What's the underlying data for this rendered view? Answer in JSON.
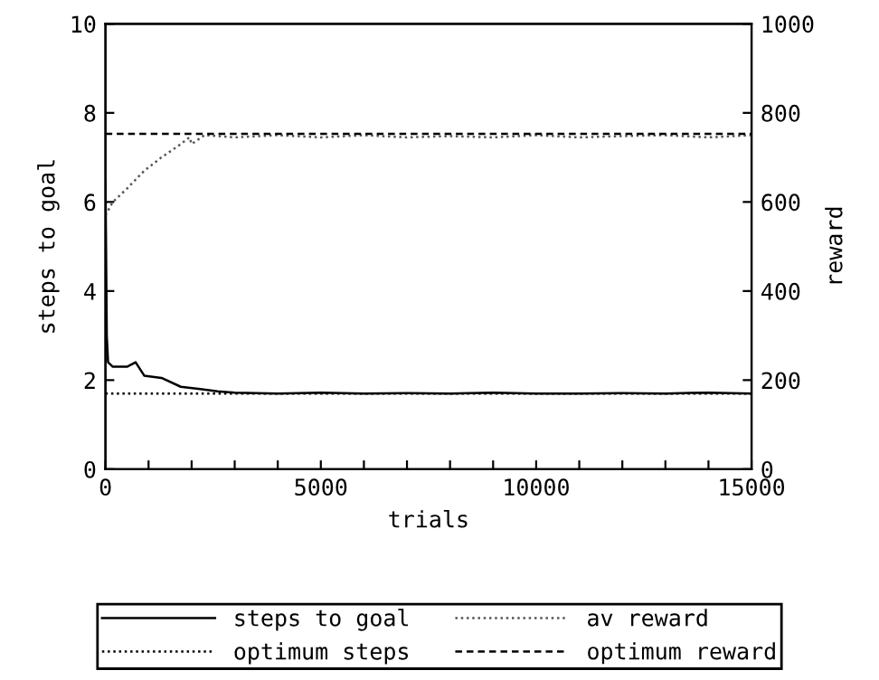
{
  "chart_data": {
    "type": "line",
    "xlabel": "trials",
    "ylabel": "steps to goal",
    "y2label": "reward",
    "xlim": [
      0,
      15000
    ],
    "ylim": [
      0,
      10
    ],
    "y2lim": [
      0,
      1000
    ],
    "xticks": [
      0,
      {
        "value": 1000,
        "label": null
      },
      {
        "value": 2000,
        "label": null
      },
      {
        "value": 3000,
        "label": null
      },
      {
        "value": 4000,
        "label": null
      },
      5000,
      {
        "value": 6000,
        "label": null
      },
      {
        "value": 7000,
        "label": null
      },
      {
        "value": 8000,
        "label": null
      },
      {
        "value": 9000,
        "label": null
      },
      10000,
      {
        "value": 11000,
        "label": null
      },
      {
        "value": 12000,
        "label": null
      },
      {
        "value": 13000,
        "label": null
      },
      {
        "value": 14000,
        "label": null
      },
      15000
    ],
    "yticks": [
      0,
      2,
      4,
      6,
      8,
      10
    ],
    "y2ticks": [
      0,
      200,
      400,
      600,
      800,
      1000
    ],
    "legend": "bottom",
    "grid": false,
    "series": [
      {
        "name": "steps to goal",
        "color": "#000000",
        "line_style": "solid",
        "x": [
          0,
          30,
          60,
          170,
          500,
          700,
          900,
          1300,
          1750,
          2200,
          2600,
          3000,
          4000,
          5000,
          6000,
          7000,
          8000,
          9000,
          10000,
          11000,
          12000,
          13000,
          14000,
          15000
        ],
        "values": [
          6.5,
          3.0,
          2.4,
          2.3,
          2.3,
          2.4,
          2.1,
          2.05,
          1.85,
          1.8,
          1.75,
          1.72,
          1.7,
          1.72,
          1.7,
          1.71,
          1.7,
          1.72,
          1.7,
          1.7,
          1.71,
          1.7,
          1.72,
          1.7
        ]
      },
      {
        "name": "optimum steps",
        "color": "#000000",
        "line_style": "dotted",
        "x": [
          0,
          15000
        ],
        "values": [
          1.7,
          1.7
        ]
      },
      {
        "name": "av reward",
        "color": "#555555",
        "line_style": "dotted",
        "axis": "y2",
        "x": [
          0,
          170,
          500,
          900,
          1300,
          1750,
          1950,
          2000,
          2300,
          3000,
          4000,
          5000,
          6000,
          7000,
          8000,
          9000,
          10000,
          11000,
          12000,
          13000,
          14000,
          15000
        ],
        "values": [
          570,
          600,
          630,
          670,
          700,
          730,
          745,
          730,
          750,
          745,
          750,
          745,
          750,
          745,
          748,
          745,
          750,
          745,
          748,
          750,
          745,
          750
        ]
      },
      {
        "name": "optimum reward",
        "color": "#000000",
        "line_style": "dashed",
        "axis": "y2",
        "x": [
          0,
          15000
        ],
        "values": [
          753,
          753
        ]
      }
    ]
  }
}
